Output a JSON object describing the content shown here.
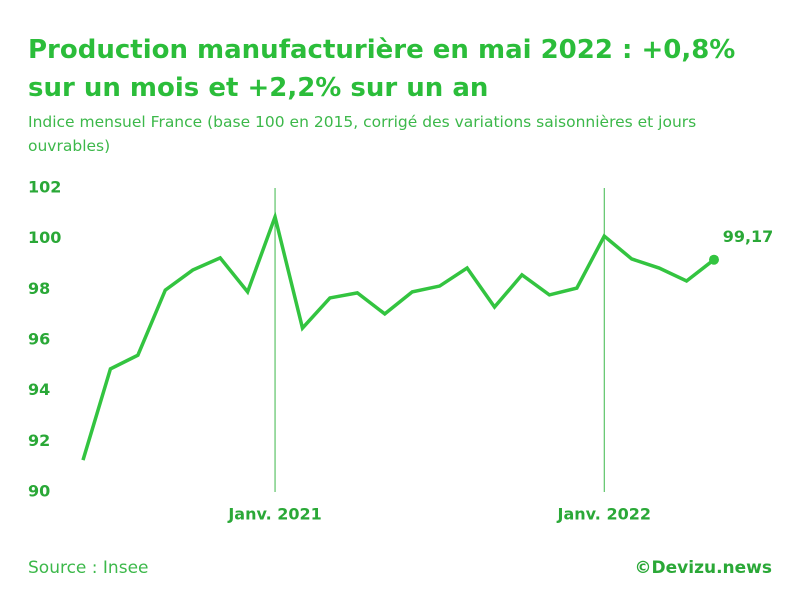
{
  "chart_data": {
    "type": "line",
    "title": [
      "Production manufacturière en mai 2022 : +0,8%",
      "sur un mois et +2,2% sur un an"
    ],
    "subtitle": [
      "Indice mensuel France (base 100 en 2015, corrigé des variations saisonnières et jours",
      "ouvrables)"
    ],
    "source": "Source : Insee",
    "credit": "©Devizu.news",
    "categories": [
      null,
      null,
      null,
      null,
      null,
      null,
      null,
      "Janv. 2021",
      null,
      null,
      null,
      null,
      null,
      null,
      null,
      null,
      null,
      null,
      null,
      "Janv. 2022",
      null,
      null,
      null,
      null
    ],
    "series": [
      {
        "name": null,
        "color": "#33c440",
        "values": [
          91.26,
          94.86,
          95.4,
          97.97,
          98.76,
          99.24,
          97.9,
          100.86,
          96.47,
          97.66,
          97.86,
          97.03,
          97.9,
          98.13,
          98.84,
          97.3,
          98.57,
          97.78,
          98.05,
          100.1,
          99.2,
          98.84,
          98.33,
          99.17
        ],
        "value_labels": [
          null,
          null,
          null,
          null,
          null,
          null,
          null,
          null,
          null,
          null,
          null,
          null,
          null,
          null,
          null,
          null,
          null,
          null,
          null,
          null,
          null,
          null,
          null,
          "99,17"
        ]
      }
    ],
    "ylim": [
      90,
      102
    ],
    "yticks": [
      90,
      92,
      94,
      96,
      98,
      100,
      102
    ]
  }
}
